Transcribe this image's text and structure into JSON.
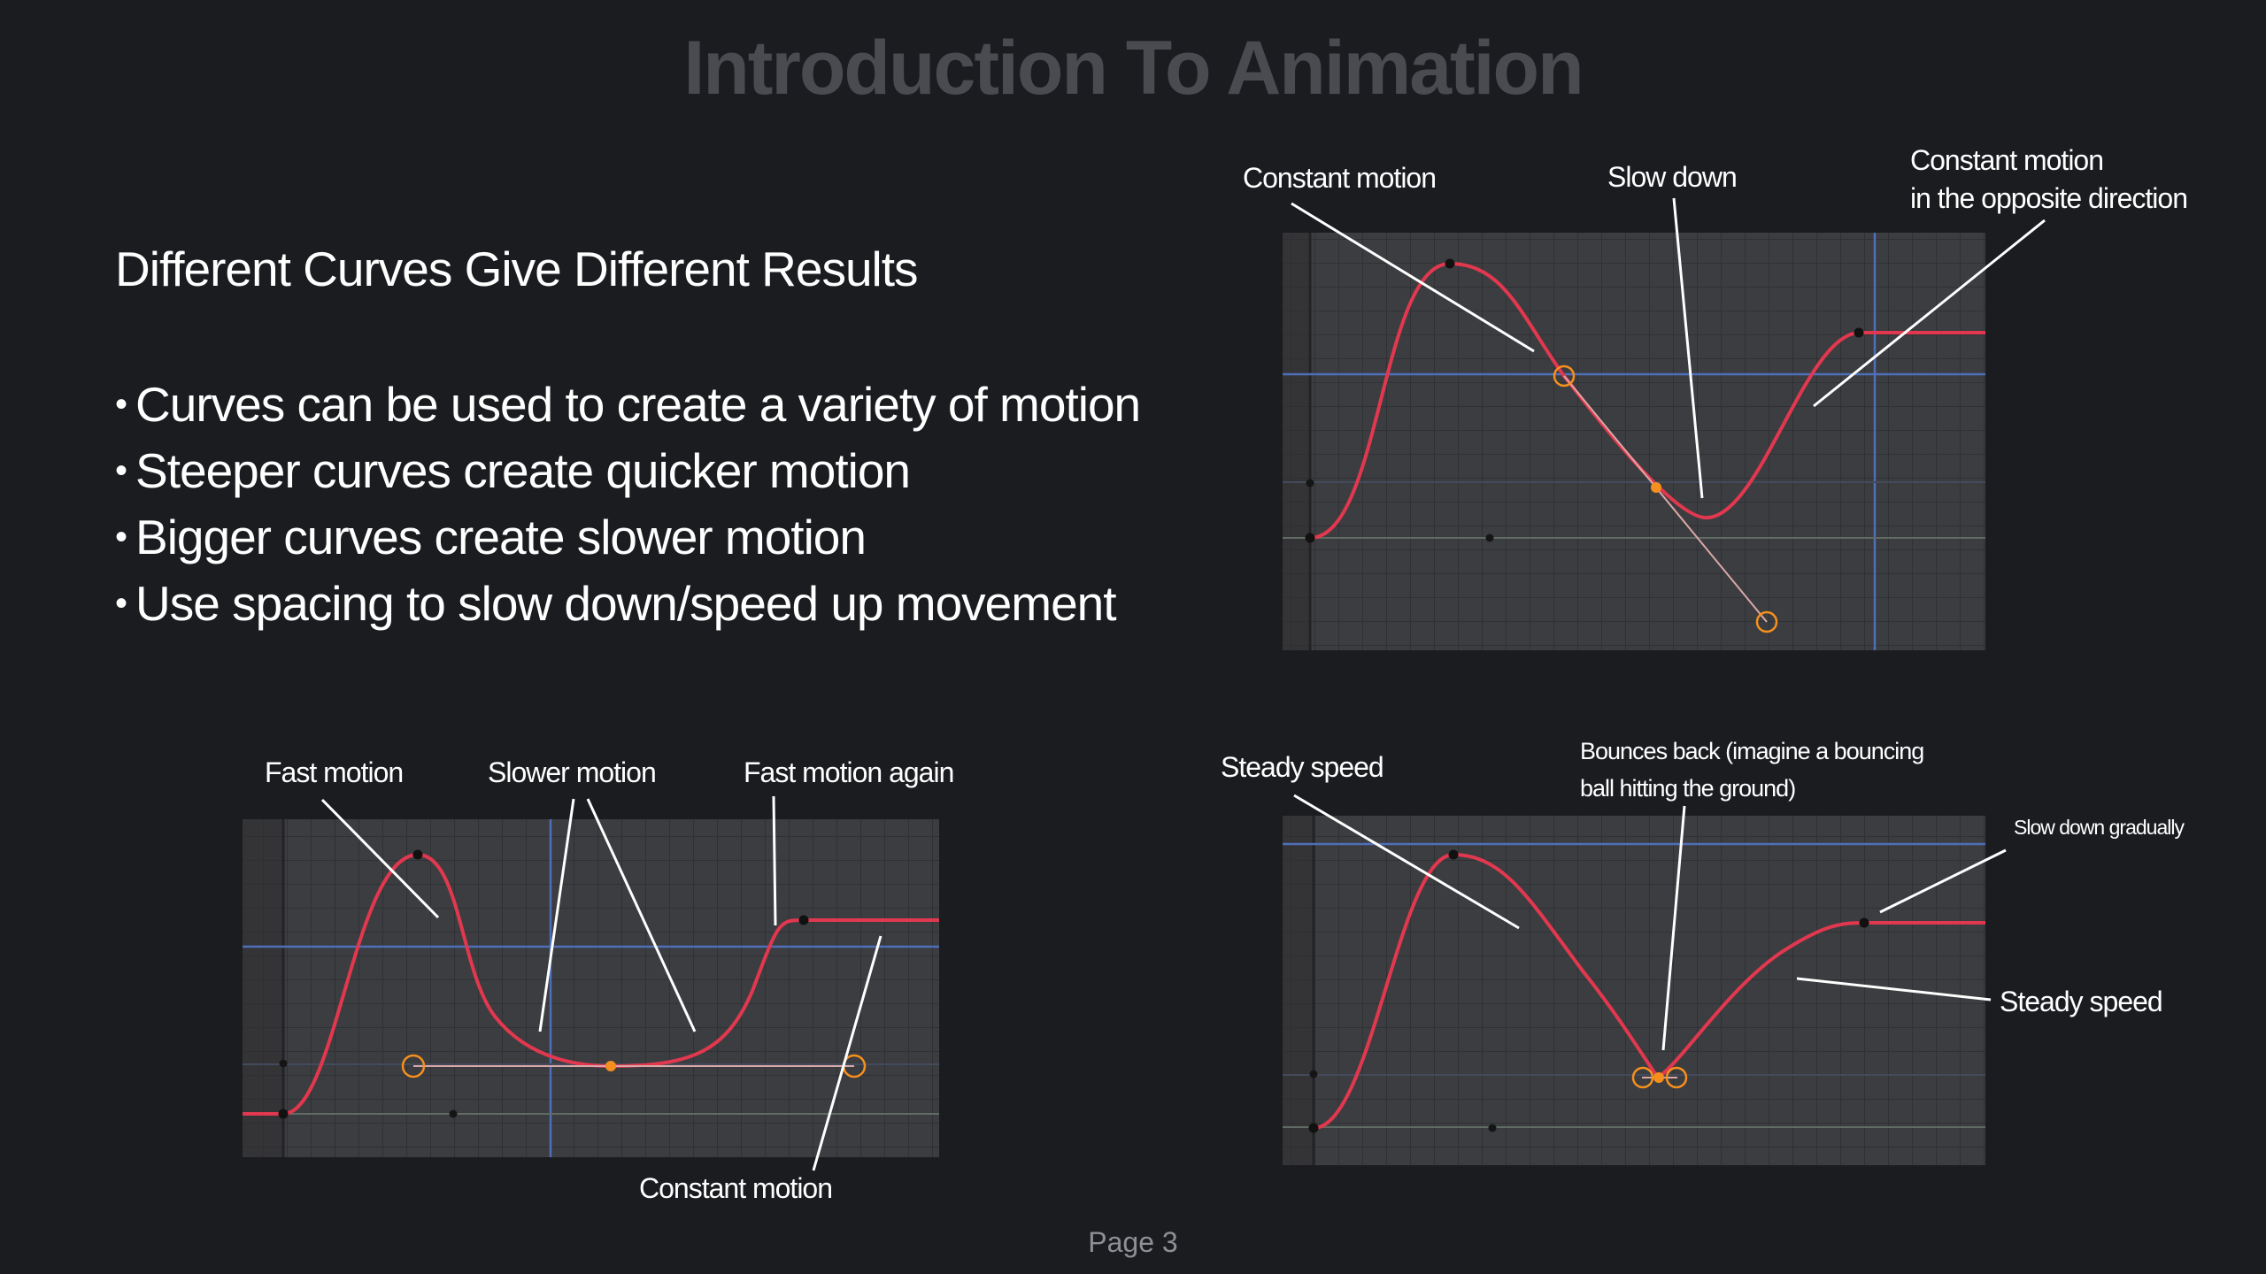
{
  "slide": {
    "title": "Introduction To Animation",
    "subtitle": "Different Curves Give Different Results",
    "bullets": [
      "Curves can be used to create a variety of motion",
      "Steeper curves create quicker motion",
      "Bigger curves create slower motion",
      "Use spacing to slow down/speed up movement"
    ],
    "page_label": "Page 3"
  },
  "graphs": {
    "top_right": {
      "labels": {
        "constant_motion": "Constant motion",
        "slow_down": "Slow down",
        "opposite_line1": "Constant motion",
        "opposite_line2": "in the opposite direction"
      }
    },
    "bottom_left": {
      "labels": {
        "fast_motion": "Fast motion",
        "slower_motion": "Slower motion",
        "fast_motion_again": "Fast motion again",
        "constant_motion": "Constant motion"
      }
    },
    "bottom_right": {
      "labels": {
        "steady_speed_left": "Steady speed",
        "bounces_line1": "Bounces back (imagine a bouncing",
        "bounces_line2": "ball hitting the ground)",
        "slow_down_gradually": "Slow down gradually",
        "steady_speed_right": "Steady speed"
      }
    }
  },
  "colors": {
    "background": "#1b1c20",
    "graph_bg": "#3c3d40",
    "curve": "#e2384f",
    "handle": "#f5901e",
    "axis_blue": "#4f6fb8",
    "title": "#4a4b50"
  }
}
